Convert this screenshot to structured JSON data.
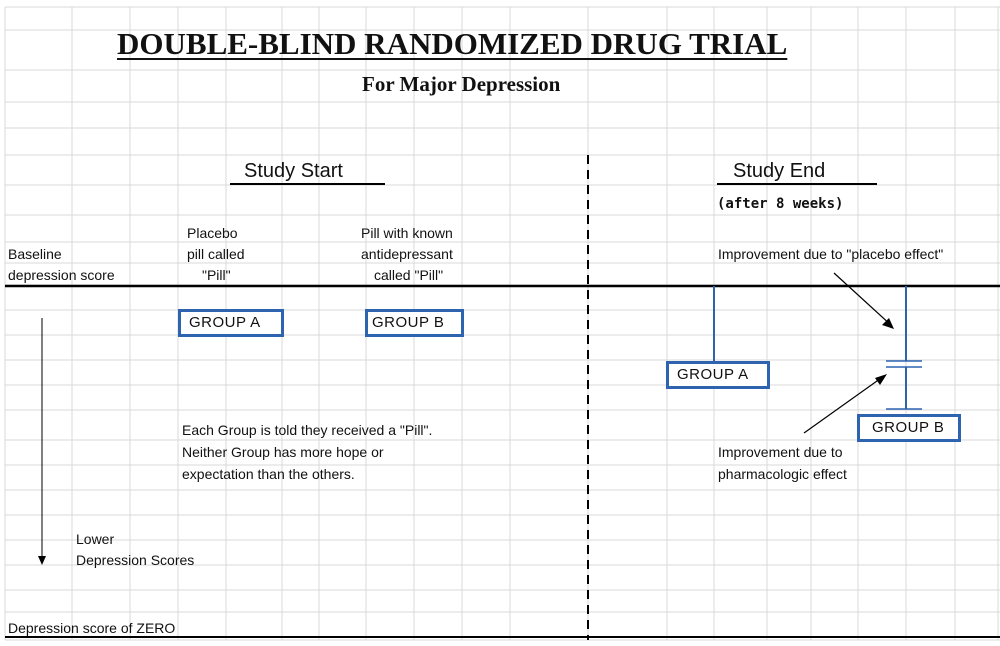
{
  "title": "DOUBLE-BLIND RANDOMIZED DRUG TRIAL",
  "subtitle": "For Major Depression",
  "study_start": {
    "heading": "Study Start",
    "placebo_label": [
      "Placebo",
      "pill called",
      "\"Pill\""
    ],
    "drug_label": [
      "Pill with known",
      "antidepressant",
      "called \"Pill\""
    ],
    "group_a": "GROUP A",
    "group_b": "GROUP B",
    "note": [
      "Each Group is told they received a \"Pill\".",
      "Neither Group has more hope or",
      "expectation than the others."
    ]
  },
  "study_end": {
    "heading": "Study End",
    "duration": "(after 8 weeks)",
    "placebo_effect": "Improvement due to \"placebo effect\"",
    "pharma_effect": [
      "Improvement due to",
      "pharmacologic effect"
    ],
    "group_a": "GROUP A",
    "group_b": "GROUP B"
  },
  "axis": {
    "baseline": [
      "Baseline",
      "depression score"
    ],
    "lower": [
      "Lower",
      "Depression Scores"
    ],
    "zero": "Depression score of ZERO"
  },
  "colors": {
    "group_box": "#2e63b0",
    "grid": "#d9d9d9",
    "lines": "#000000"
  }
}
